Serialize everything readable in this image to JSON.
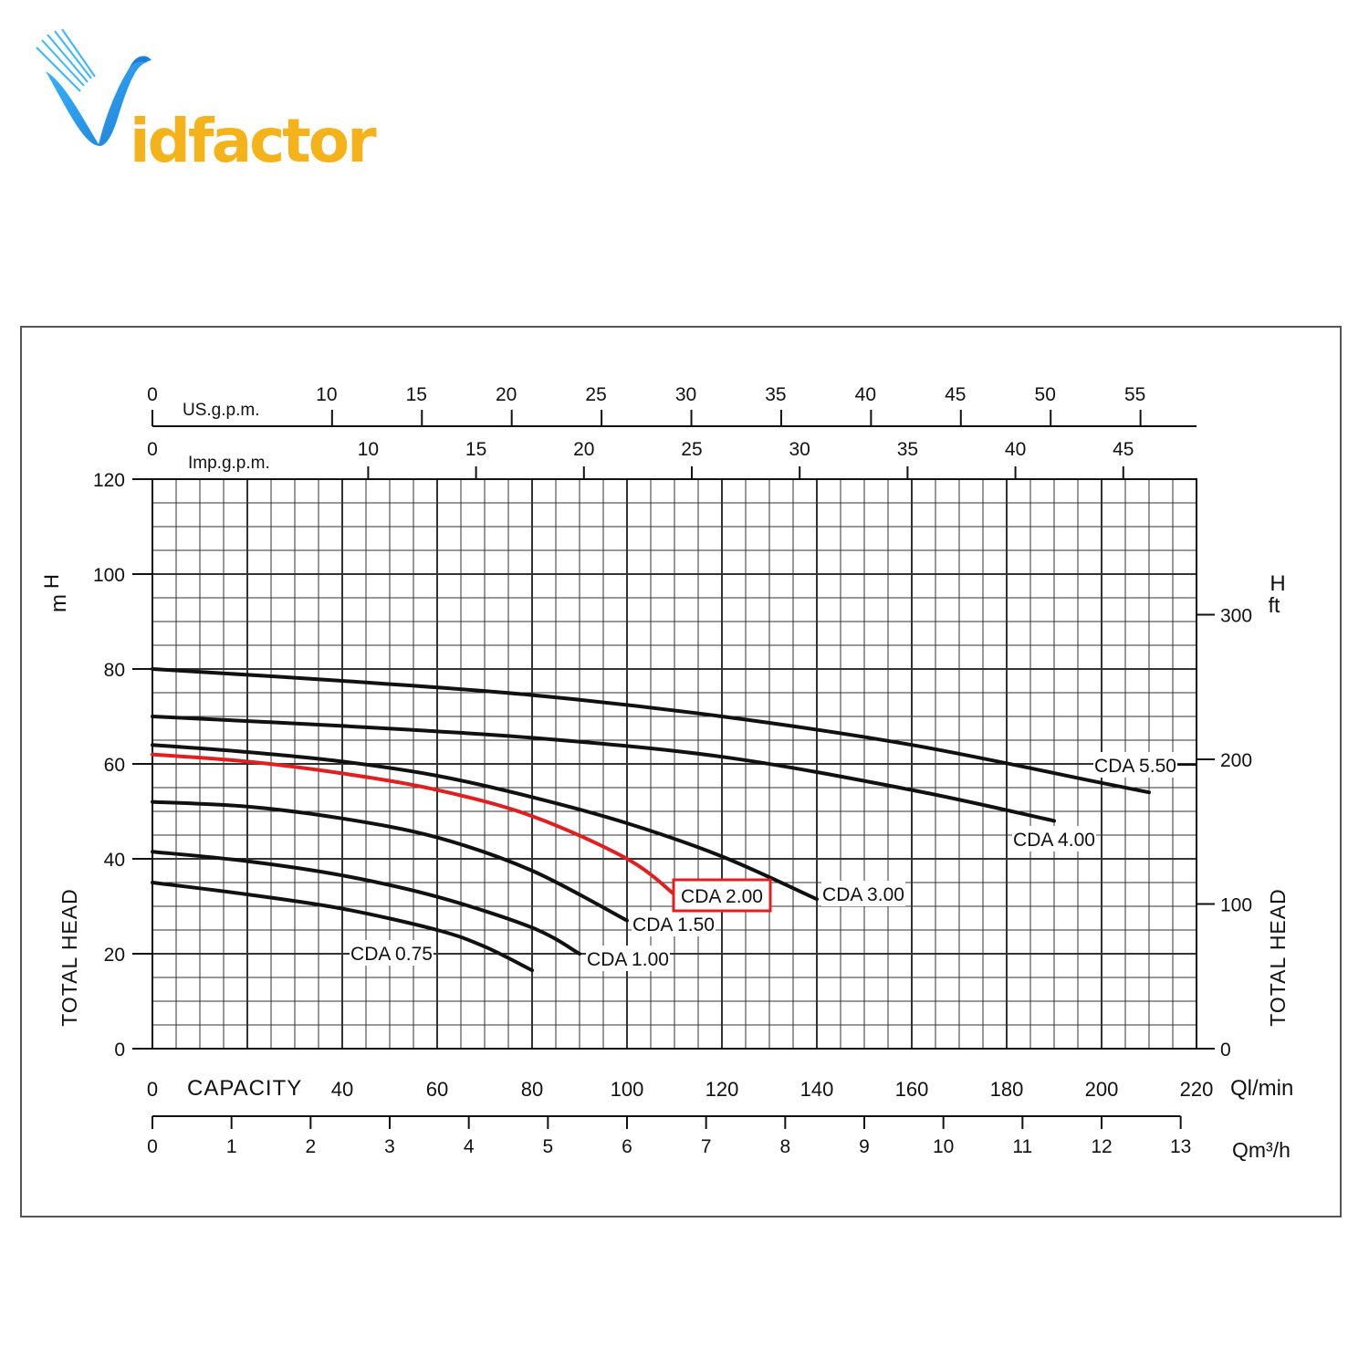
{
  "brand": {
    "name": "Vidfactor",
    "letter": "V",
    "wordmark": "idfactor",
    "colors": {
      "blue": "#1e7fd6",
      "blue_light": "#38b6ff",
      "orange": "#f4b21b"
    }
  },
  "chart_data": {
    "type": "line",
    "title": "",
    "colors": {
      "curve": "#111111",
      "highlight": "#e02020",
      "grid": "#333333"
    },
    "x_axes": {
      "primary": {
        "label": "CAPACITY",
        "unit": "Ql/min",
        "range": [
          0,
          220
        ],
        "ticks": [
          0,
          20,
          40,
          60,
          80,
          100,
          120,
          140,
          160,
          180,
          200,
          220
        ],
        "tick_labels": [
          "0",
          "",
          "40",
          "60",
          "80",
          "100",
          "120",
          "140",
          "160",
          "180",
          "200",
          "220"
        ]
      },
      "m3h": {
        "unit": "Qm³/h",
        "ticks": [
          0,
          1,
          2,
          3,
          4,
          5,
          6,
          7,
          8,
          9,
          10,
          11,
          12,
          13
        ]
      },
      "us_gpm": {
        "unit": "US.g.p.m.",
        "zero_label": "0",
        "ticks": [
          10,
          15,
          20,
          25,
          30,
          35,
          40,
          45,
          50,
          55
        ]
      },
      "imp_gpm": {
        "unit": "Imp.g.p.m.",
        "zero_label": "0",
        "ticks": [
          10,
          15,
          20,
          25,
          30,
          35,
          40,
          45
        ]
      }
    },
    "y_axes": {
      "left": {
        "label": "TOTAL HEAD",
        "unit": "H",
        "unit2": "m",
        "range": [
          0,
          120
        ],
        "ticks": [
          0,
          20,
          40,
          60,
          80,
          100,
          120
        ]
      },
      "right": {
        "label": "TOTAL HEAD",
        "unit": "H",
        "unit2": "ft",
        "ticks": [
          0,
          100,
          200,
          300
        ]
      }
    },
    "grid": true,
    "series": [
      {
        "name": "CDA 0.75",
        "highlight": false,
        "x": [
          0,
          20,
          40,
          60,
          70,
          80
        ],
        "y": [
          35,
          32.5,
          29.5,
          25,
          21.5,
          16.5
        ]
      },
      {
        "name": "CDA 1.00",
        "highlight": false,
        "x": [
          0,
          20,
          40,
          60,
          80,
          90
        ],
        "y": [
          41.5,
          39.5,
          36.5,
          32,
          25.5,
          20
        ]
      },
      {
        "name": "CDA 1.50",
        "highlight": false,
        "x": [
          0,
          20,
          40,
          60,
          80,
          100
        ],
        "y": [
          52,
          51,
          48.5,
          44.5,
          37.5,
          27
        ]
      },
      {
        "name": "CDA 2.00",
        "highlight": true,
        "x": [
          0,
          20,
          40,
          60,
          80,
          100,
          110
        ],
        "y": [
          62,
          60.5,
          58,
          54.5,
          49,
          40,
          32.5
        ]
      },
      {
        "name": "CDA 3.00",
        "highlight": false,
        "x": [
          0,
          20,
          40,
          60,
          80,
          100,
          120,
          140
        ],
        "y": [
          64,
          62.5,
          60.5,
          57.5,
          53,
          47.5,
          40.5,
          31.5
        ]
      },
      {
        "name": "CDA 4.00",
        "highlight": false,
        "x": [
          0,
          40,
          80,
          120,
          160,
          190
        ],
        "y": [
          70,
          68,
          65.5,
          61.5,
          54.5,
          48
        ]
      },
      {
        "name": "CDA 5.50",
        "highlight": false,
        "x": [
          0,
          40,
          80,
          120,
          160,
          200,
          210
        ],
        "y": [
          80,
          77.5,
          74.5,
          70,
          64,
          56,
          54
        ]
      }
    ]
  }
}
